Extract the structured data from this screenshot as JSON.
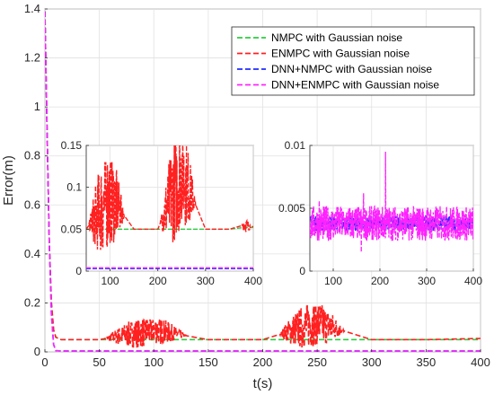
{
  "chart_data": [
    {
      "type": "line",
      "role": "main",
      "xlabel": "t(s)",
      "ylabel": "Error(m)",
      "xlim": [
        0,
        400
      ],
      "ylim": [
        0,
        1.4
      ],
      "xticks": [
        0,
        50,
        100,
        150,
        200,
        250,
        300,
        350,
        400
      ],
      "yticks": [
        0,
        0.2,
        0.4,
        0.6,
        0.8,
        1,
        1.2,
        1.4
      ],
      "grid": true,
      "legend_position": "top-right",
      "series": [
        {
          "name": "NMPC with Gaussian noise",
          "color": "#2ecc40",
          "style": "dashed",
          "x": [
            0,
            2,
            4,
            6,
            8,
            10,
            15,
            20,
            50,
            100,
            150,
            200,
            250,
            300,
            350,
            400
          ],
          "y": [
            1.39,
            0.9,
            0.45,
            0.2,
            0.09,
            0.06,
            0.05,
            0.05,
            0.05,
            0.05,
            0.05,
            0.05,
            0.05,
            0.05,
            0.05,
            0.05
          ]
        },
        {
          "name": "ENMPC with Gaussian noise",
          "color": "#ff2020",
          "style": "dashed",
          "x": [
            0,
            2,
            4,
            6,
            8,
            10,
            15,
            20,
            50,
            100,
            150,
            200,
            250,
            300,
            350,
            400
          ],
          "y": [
            1.39,
            0.9,
            0.45,
            0.2,
            0.09,
            0.06,
            0.05,
            0.05,
            0.05,
            0.09,
            0.05,
            0.05,
            0.12,
            0.05,
            0.05,
            0.055
          ],
          "noise_bursts": [
            {
              "x_from": 55,
              "x_to": 130,
              "y_low": 0.015,
              "y_high": 0.13
            },
            {
              "x_from": 215,
              "x_to": 275,
              "y_low": 0.015,
              "y_high": 0.19
            }
          ]
        },
        {
          "name": "DNN+NMPC with Gaussian noise",
          "color": "#1f2dff",
          "style": "dashed",
          "x": [
            0,
            2,
            4,
            6,
            8,
            10,
            15,
            20,
            50,
            100,
            150,
            200,
            250,
            300,
            350,
            400
          ],
          "y": [
            1.39,
            0.9,
            0.45,
            0.15,
            0.03,
            0.005,
            0.004,
            0.004,
            0.004,
            0.004,
            0.004,
            0.004,
            0.004,
            0.004,
            0.004,
            0.004
          ]
        },
        {
          "name": "DNN+ENMPC with Gaussian noise",
          "color": "#ff22ff",
          "style": "dashed",
          "x": [
            0,
            2,
            4,
            6,
            8,
            10,
            15,
            20,
            50,
            100,
            150,
            200,
            250,
            300,
            350,
            400
          ],
          "y": [
            1.39,
            0.9,
            0.45,
            0.15,
            0.03,
            0.005,
            0.004,
            0.004,
            0.004,
            0.004,
            0.004,
            0.004,
            0.004,
            0.004,
            0.004,
            0.004
          ]
        }
      ]
    },
    {
      "type": "line",
      "role": "inset-left",
      "xlim": [
        50,
        400
      ],
      "ylim": [
        0,
        0.15
      ],
      "xticks": [
        100,
        200,
        300,
        400
      ],
      "yticks": [
        0,
        0.05,
        0.1,
        0.15
      ],
      "ytick_labels": [
        "0",
        "0.05",
        "0.1",
        "0.15"
      ],
      "grid": true,
      "series": [
        {
          "name": "NMPC with Gaussian noise",
          "color": "#2ecc40",
          "x": [
            50,
            100,
            150,
            200,
            250,
            300,
            350,
            380,
            400
          ],
          "y": [
            0.05,
            0.05,
            0.05,
            0.05,
            0.05,
            0.05,
            0.05,
            0.052,
            0.052
          ]
        },
        {
          "name": "ENMPC with Gaussian noise",
          "color": "#ff2020",
          "x": [
            50,
            100,
            150,
            200,
            250,
            300,
            350,
            380,
            400
          ],
          "y": [
            0.05,
            0.09,
            0.05,
            0.05,
            0.12,
            0.05,
            0.05,
            0.055,
            0.053
          ],
          "noise_bursts": [
            {
              "x_from": 55,
              "x_to": 130,
              "y_low": 0.02,
              "y_high": 0.13
            },
            {
              "x_from": 205,
              "x_to": 280,
              "y_low": 0.03,
              "y_high": 0.15
            },
            {
              "x_from": 375,
              "x_to": 395,
              "y_low": 0.045,
              "y_high": 0.06
            }
          ]
        },
        {
          "name": "DNN+NMPC with Gaussian noise",
          "color": "#1f2dff",
          "x": [
            50,
            400
          ],
          "y": [
            0.003,
            0.003
          ]
        },
        {
          "name": "DNN+ENMPC with Gaussian noise",
          "color": "#ff22ff",
          "x": [
            50,
            400
          ],
          "y": [
            0.004,
            0.004
          ]
        }
      ]
    },
    {
      "type": "line",
      "role": "inset-right",
      "xlim": [
        50,
        400
      ],
      "ylim": [
        0,
        0.01
      ],
      "xticks": [
        100,
        200,
        300,
        400
      ],
      "yticks": [
        0,
        0.005,
        0.01
      ],
      "ytick_labels": [
        "0",
        "0.005",
        "0.01"
      ],
      "grid": true,
      "series": [
        {
          "name": "DNN+NMPC with Gaussian noise",
          "color": "#1f2dff",
          "x": [
            50,
            400
          ],
          "y": [
            0.0038,
            0.0038
          ],
          "noise_amplitude": 0.0006
        },
        {
          "name": "DNN+ENMPC with Gaussian noise",
          "color": "#ff22ff",
          "x": [
            50,
            400
          ],
          "y": [
            0.0038,
            0.0038
          ],
          "noise_amplitude": 0.0014,
          "spikes": [
            {
              "x": 70,
              "y": 0.0056
            },
            {
              "x": 165,
              "y": 0.0062
            },
            {
              "x": 212,
              "y": 0.0095
            },
            {
              "x": 160,
              "y": 0.0015
            }
          ]
        }
      ]
    }
  ]
}
